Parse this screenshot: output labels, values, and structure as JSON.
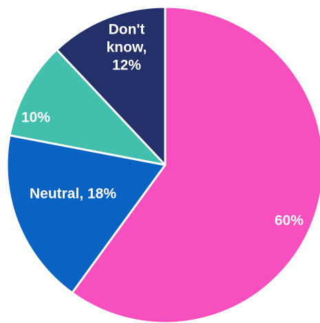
{
  "chart_data": {
    "type": "pie",
    "slices": [
      {
        "value": 60,
        "label_lines": [
          "60%"
        ],
        "color": "#F74FBE"
      },
      {
        "value": 18,
        "label_lines": [
          "Neutral, 18%"
        ],
        "color": "#0A62C2"
      },
      {
        "value": 10,
        "label_lines": [
          "10%"
        ],
        "color": "#43BFAE"
      },
      {
        "value": 12,
        "label_lines": [
          "Don't",
          "know,",
          "12%"
        ],
        "color": "#24306A"
      }
    ]
  }
}
